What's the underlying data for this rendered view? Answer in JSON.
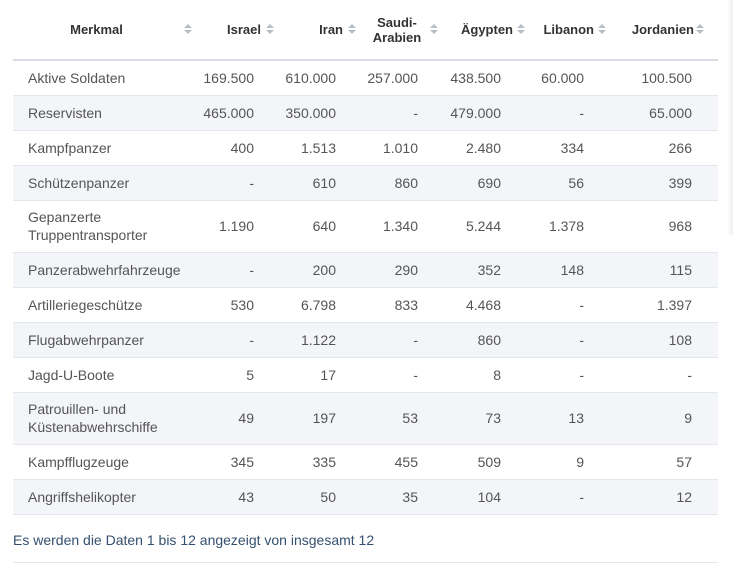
{
  "table": {
    "headers": [
      {
        "key": "merkmal",
        "label": "Merkmal"
      },
      {
        "key": "israel",
        "label": "Israel"
      },
      {
        "key": "iran",
        "label": "Iran"
      },
      {
        "key": "saudi",
        "label_line1": "Saudi-",
        "label_line2": "Arabien"
      },
      {
        "key": "aegypten",
        "label": "Ägypten"
      },
      {
        "key": "libanon",
        "label": "Libanon"
      },
      {
        "key": "jordanien",
        "label": "Jordanien"
      }
    ],
    "rows": [
      {
        "label": [
          "Aktive Soldaten"
        ],
        "values": [
          "169.500",
          "610.000",
          "257.000",
          "438.500",
          "60.000",
          "100.500"
        ]
      },
      {
        "label": [
          "Reservisten"
        ],
        "values": [
          "465.000",
          "350.000",
          "-",
          "479.000",
          "-",
          "65.000"
        ]
      },
      {
        "label": [
          "Kampfpanzer"
        ],
        "values": [
          "400",
          "1.513",
          "1.010",
          "2.480",
          "334",
          "266"
        ]
      },
      {
        "label": [
          "Schützenpanzer"
        ],
        "values": [
          "-",
          "610",
          "860",
          "690",
          "56",
          "399"
        ]
      },
      {
        "label": [
          "Gepanzerte",
          "Truppentransporter"
        ],
        "values": [
          "1.190",
          "640",
          "1.340",
          "5.244",
          "1.378",
          "968"
        ]
      },
      {
        "label": [
          "Panzerabwehrfahrzeuge"
        ],
        "values": [
          "-",
          "200",
          "290",
          "352",
          "148",
          "115"
        ]
      },
      {
        "label": [
          "Artilleriegeschütze"
        ],
        "values": [
          "530",
          "6.798",
          "833",
          "4.468",
          "-",
          "1.397"
        ]
      },
      {
        "label": [
          "Flugabwehrpanzer"
        ],
        "values": [
          "-",
          "1.122",
          "-",
          "860",
          "-",
          "108"
        ]
      },
      {
        "label": [
          "Jagd-U-Boote"
        ],
        "values": [
          "5",
          "17",
          "-",
          "8",
          "-",
          "-"
        ]
      },
      {
        "label": [
          "Patrouillen- und",
          "Küstenabwehrschiffe"
        ],
        "values": [
          "49",
          "197",
          "53",
          "73",
          "13",
          "9"
        ]
      },
      {
        "label": [
          "Kampfflugzeuge"
        ],
        "values": [
          "345",
          "335",
          "455",
          "509",
          "9",
          "57"
        ]
      },
      {
        "label": [
          "Angriffshelikopter"
        ],
        "values": [
          "43",
          "50",
          "35",
          "104",
          "-",
          "12"
        ]
      }
    ]
  },
  "info_text": "Es werden die Daten 1 bis 12 angezeigt von insgesamt 12",
  "icons": {
    "sort": "sort-arrows-icon"
  },
  "colors": {
    "info_text": "#34506e",
    "stripe": "#f3f5f9",
    "border": "#e3e6ea"
  }
}
